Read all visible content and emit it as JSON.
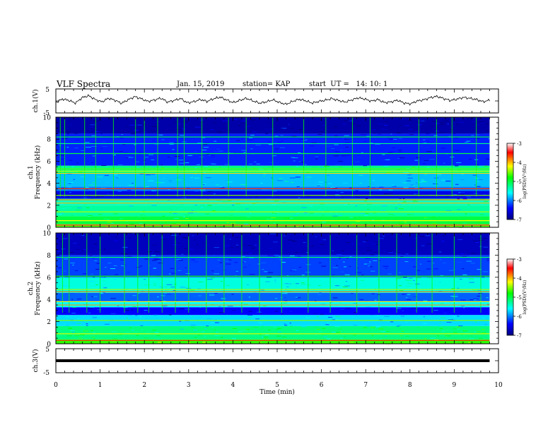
{
  "header": {
    "title": "VLF Spectra",
    "date": "Jan. 15, 2019",
    "station": "station= KAP",
    "start_time": "start  UT =   14: 10: 1"
  },
  "chart_data": [
    {
      "type": "line",
      "panel": "ch1-waveform",
      "ylabel": "ch.1(V)",
      "ylim": [
        -5,
        5
      ],
      "yticks": [
        "5",
        "-5"
      ],
      "x_range_min": [
        0,
        9.8
      ],
      "series": [
        {
          "values": [
            -0.6,
            0.8,
            0.2,
            -0.9,
            1.4,
            2.2,
            0.6,
            -0.4,
            1.1,
            0.3,
            -1.0,
            0.5,
            1.8,
            0.9,
            -0.2,
            0.4,
            1.2,
            -0.5,
            0.2,
            1.0,
            -0.8,
            -0.3,
            0.6,
            -0.2,
            0.9,
            1.6,
            0.4,
            -0.7,
            0.3,
            1.1,
            0.0,
            -0.9,
            -0.4,
            0.5,
            -0.6,
            -1.4,
            -0.2,
            0.7,
            0.1,
            -0.9,
            -0.2,
            0.3,
            1.0,
            0.2,
            -0.5,
            0.4,
            1.3,
            0.8,
            -0.1,
            0.6,
            -0.7,
            -0.4,
            0.3,
            -0.9,
            -1.2,
            0.0,
            0.5,
            1.4,
            1.9,
            1.0,
            0.2,
            0.7,
            1.5,
            1.1,
            0.6,
            -0.3,
            0.3
          ]
        }
      ]
    },
    {
      "type": "heatmap",
      "panel": "ch1-spectrogram",
      "ylabel": "ch.1 Frequency (kHz)",
      "ylim": [
        0,
        10
      ],
      "yticks": [
        "0",
        "2",
        "4",
        "6",
        "8",
        "10"
      ],
      "colorbar": {
        "label": "log(PSD)(V²/Hz)",
        "range": [
          -7,
          -3
        ],
        "ticks": [
          "-3",
          "-4",
          "-5",
          "-6",
          "-7"
        ]
      },
      "bands": [
        {
          "from": 0.0,
          "to": 0.3,
          "level": -4.6
        },
        {
          "from": 0.3,
          "to": 1.0,
          "level": -5.0
        },
        {
          "from": 1.0,
          "to": 2.0,
          "level": -5.3
        },
        {
          "from": 2.0,
          "to": 2.6,
          "level": -5.4
        },
        {
          "from": 2.6,
          "to": 3.3,
          "level": -6.5
        },
        {
          "from": 3.3,
          "to": 3.7,
          "level": -6.0
        },
        {
          "from": 3.7,
          "to": 4.9,
          "level": -5.8
        },
        {
          "from": 4.9,
          "to": 5.6,
          "level": -5.2
        },
        {
          "from": 5.6,
          "to": 8.5,
          "level": -6.3
        },
        {
          "from": 8.5,
          "to": 10.0,
          "level": -6.8
        }
      ],
      "lines_khz": [
        {
          "f": 0.2,
          "level": -3.4
        },
        {
          "f": 0.6,
          "level": -4.2
        },
        {
          "f": 1.4,
          "level": -4.4
        },
        {
          "f": 2.2,
          "level": -4.0
        },
        {
          "f": 2.5,
          "level": -3.9
        },
        {
          "f": 2.9,
          "level": -4.5
        },
        {
          "f": 3.5,
          "level": -3.6
        },
        {
          "f": 4.9,
          "level": -4.1
        },
        {
          "f": 5.1,
          "level": -4.3
        },
        {
          "f": 5.3,
          "level": -4.6
        },
        {
          "f": 6.7,
          "level": -5.0
        },
        {
          "f": 7.6,
          "level": -5.2
        },
        {
          "f": 8.2,
          "level": -5.0
        }
      ],
      "spikes_min": [
        0.1,
        0.2,
        0.65,
        0.9,
        1.3,
        1.8,
        2.0,
        2.3,
        2.75,
        2.9,
        3.3,
        3.9,
        4.3,
        4.9,
        5.6,
        6.1,
        6.7,
        7.1,
        8.2,
        8.6,
        8.95,
        9.5
      ]
    },
    {
      "type": "heatmap",
      "panel": "ch2-spectrogram",
      "ylabel": "ch.2 Frequency (kHz)",
      "ylim": [
        0,
        10
      ],
      "yticks": [
        "0",
        "2",
        "4",
        "6",
        "8",
        "10"
      ],
      "colorbar": {
        "label": "log(PSD)(V²/Hz)",
        "range": [
          -7,
          -3
        ],
        "ticks": [
          "-3",
          "-4",
          "-5",
          "-6",
          "-7"
        ]
      },
      "bands": [
        {
          "from": 0.0,
          "to": 0.4,
          "level": -4.7
        },
        {
          "from": 0.4,
          "to": 1.6,
          "level": -5.2
        },
        {
          "from": 1.6,
          "to": 2.6,
          "level": -5.7
        },
        {
          "from": 2.6,
          "to": 3.3,
          "level": -6.4
        },
        {
          "from": 3.3,
          "to": 3.8,
          "level": -5.6
        },
        {
          "from": 3.8,
          "to": 4.6,
          "level": -6.1
        },
        {
          "from": 4.6,
          "to": 6.0,
          "level": -5.5
        },
        {
          "from": 6.0,
          "to": 8.0,
          "level": -6.2
        },
        {
          "from": 8.0,
          "to": 10.0,
          "level": -6.7
        }
      ],
      "lines_khz": [
        {
          "f": 0.3,
          "level": -3.6
        },
        {
          "f": 0.9,
          "level": -4.3
        },
        {
          "f": 2.1,
          "level": -4.5
        },
        {
          "f": 3.5,
          "level": -3.9
        },
        {
          "f": 3.8,
          "level": -4.2
        },
        {
          "f": 4.7,
          "level": -3.8
        },
        {
          "f": 4.9,
          "level": -4.4
        },
        {
          "f": 6.1,
          "level": -4.8
        },
        {
          "f": 7.8,
          "level": -5.1
        }
      ],
      "spikes_min": [
        0.15,
        0.3,
        0.7,
        1.0,
        1.55,
        1.85,
        2.1,
        2.4,
        2.7,
        3.0,
        3.4,
        3.8,
        4.2,
        4.6,
        5.1,
        5.7,
        6.2,
        6.8,
        7.3,
        7.7,
        8.15,
        8.5,
        9.0,
        9.6
      ]
    },
    {
      "type": "line",
      "panel": "ch3-waveform",
      "ylabel": "ch.3(V)",
      "ylim": [
        -5,
        5
      ],
      "yticks": [
        "5",
        "-5"
      ],
      "x_range_min": [
        0,
        9.8
      ],
      "series": [
        {
          "values": [
            0,
            0
          ]
        }
      ]
    }
  ],
  "x_axis": {
    "label": "Time  (min)",
    "range": [
      0,
      10
    ],
    "ticks": [
      "0",
      "1",
      "2",
      "3",
      "4",
      "5",
      "6",
      "7",
      "8",
      "9",
      "10"
    ]
  },
  "colors": {
    "background": "#ffffff",
    "axes": "#000000",
    "waveform": "#000000",
    "colormap": [
      "#00007f",
      "#0000ff",
      "#00ffff",
      "#00ff00",
      "#ffff00",
      "#ff0000",
      "#ffffff"
    ]
  }
}
